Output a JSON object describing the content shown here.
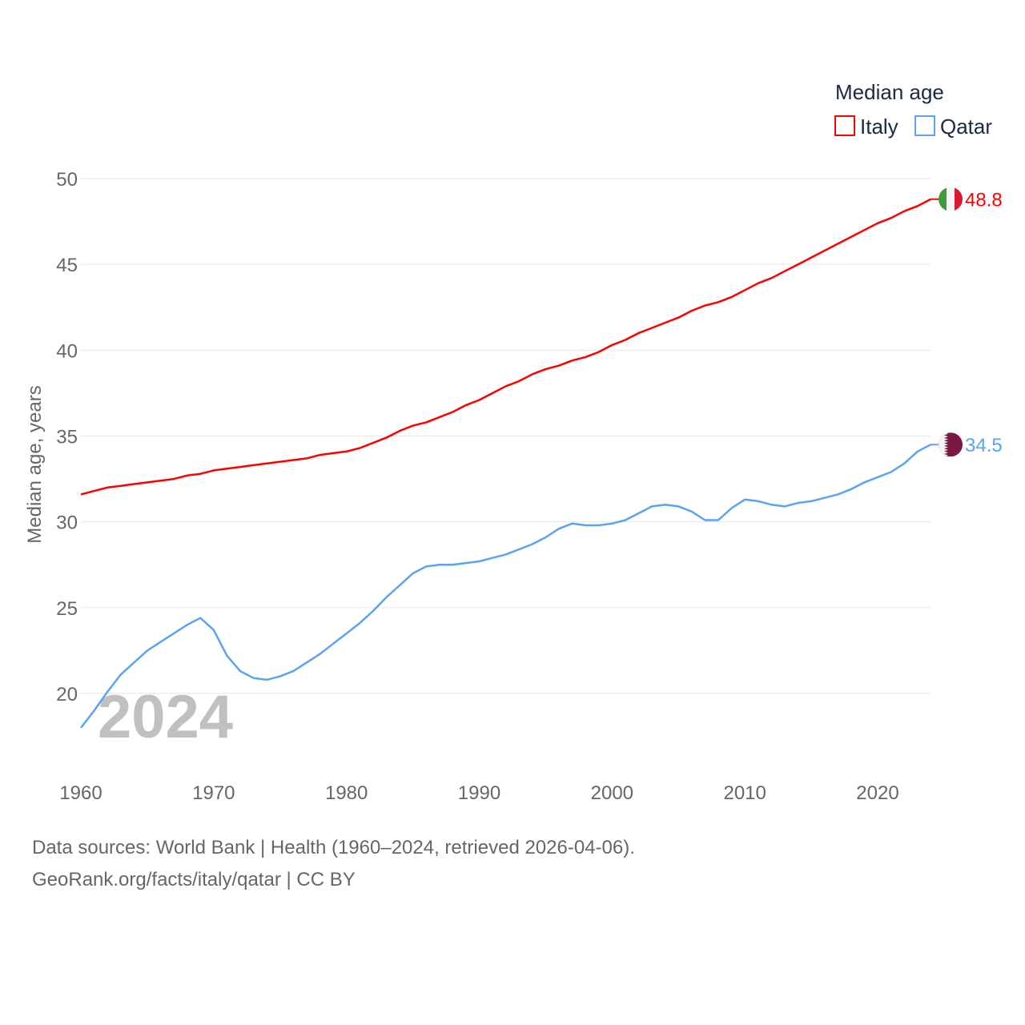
{
  "chart_data": {
    "type": "line",
    "title": "",
    "ylabel": "Median age, years",
    "xlabel": "",
    "legend_title": "Median age",
    "legend_placement": "top-right",
    "xlim": [
      1960,
      2024
    ],
    "ylim": [
      17,
      50
    ],
    "x_ticks": [
      "1960",
      "1970",
      "1980",
      "1990",
      "2000",
      "2010",
      "2020"
    ],
    "y_ticks": [
      "20",
      "25",
      "30",
      "35",
      "40",
      "45",
      "50"
    ],
    "grid": true,
    "year_watermark": "2024",
    "x": [
      1960,
      1961,
      1962,
      1963,
      1964,
      1965,
      1966,
      1967,
      1968,
      1969,
      1970,
      1971,
      1972,
      1973,
      1974,
      1975,
      1976,
      1977,
      1978,
      1979,
      1980,
      1981,
      1982,
      1983,
      1984,
      1985,
      1986,
      1987,
      1988,
      1989,
      1990,
      1991,
      1992,
      1993,
      1994,
      1995,
      1996,
      1997,
      1998,
      1999,
      2000,
      2001,
      2002,
      2003,
      2004,
      2005,
      2006,
      2007,
      2008,
      2009,
      2010,
      2011,
      2012,
      2013,
      2014,
      2015,
      2016,
      2017,
      2018,
      2019,
      2020,
      2021,
      2022,
      2023,
      2024
    ],
    "series": [
      {
        "name": "Italy",
        "color": "#ff0000",
        "end_label": "48.8",
        "values": [
          31.6,
          31.8,
          32.0,
          32.1,
          32.2,
          32.3,
          32.4,
          32.5,
          32.7,
          32.8,
          33.0,
          33.1,
          33.2,
          33.3,
          33.4,
          33.5,
          33.6,
          33.7,
          33.9,
          34.0,
          34.1,
          34.3,
          34.6,
          34.9,
          35.3,
          35.6,
          35.8,
          36.1,
          36.4,
          36.8,
          37.1,
          37.5,
          37.9,
          38.2,
          38.6,
          38.9,
          39.1,
          39.4,
          39.6,
          39.9,
          40.3,
          40.6,
          41.0,
          41.3,
          41.6,
          41.9,
          42.3,
          42.6,
          42.8,
          43.1,
          43.5,
          43.9,
          44.2,
          44.6,
          45.0,
          45.4,
          45.8,
          46.2,
          46.6,
          47.0,
          47.4,
          47.7,
          48.1,
          48.4,
          48.8
        ]
      },
      {
        "name": "Qatar",
        "color": "#5ba3f0",
        "end_label": "34.5",
        "values": [
          18.0,
          19.0,
          20.1,
          21.1,
          21.8,
          22.5,
          23.0,
          23.5,
          24.0,
          24.4,
          23.7,
          22.2,
          21.3,
          20.9,
          20.8,
          21.0,
          21.3,
          21.8,
          22.3,
          22.9,
          23.5,
          24.1,
          24.8,
          25.6,
          26.3,
          27.0,
          27.4,
          27.5,
          27.5,
          27.6,
          27.7,
          27.9,
          28.1,
          28.4,
          28.7,
          29.1,
          29.6,
          29.9,
          29.8,
          29.8,
          29.9,
          30.1,
          30.5,
          30.9,
          31.0,
          30.9,
          30.6,
          30.1,
          30.1,
          30.8,
          31.3,
          31.2,
          31.0,
          30.9,
          31.1,
          31.2,
          31.4,
          31.6,
          31.9,
          32.3,
          32.6,
          32.9,
          33.4,
          34.1,
          34.5
        ]
      }
    ]
  },
  "footer": {
    "line1": "Data sources: World Bank | Health (1960–2024, retrieved 2026-04-06).",
    "line2": "GeoRank.org/facts/italy/qatar | CC BY"
  }
}
